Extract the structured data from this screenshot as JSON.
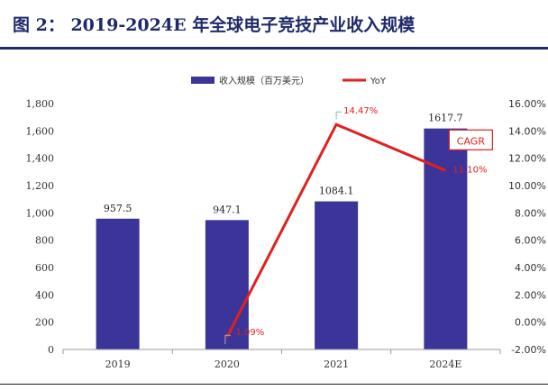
{
  "figure": {
    "title": "图 2：  2019-2024E 年全球电子竞技产业收入规模"
  },
  "chart_data": {
    "type": "bar",
    "categories": [
      "2019",
      "2020",
      "2021",
      "2024E"
    ],
    "series": [
      {
        "name": "收入规模（百万美元）",
        "kind": "bar",
        "axis": "left",
        "values": [
          957.5,
          947.1,
          1084.1,
          1617.7
        ],
        "labels": [
          "957.5",
          "947.1",
          "1084.1",
          "1617.7"
        ]
      },
      {
        "name": "YoY",
        "kind": "line",
        "axis": "right",
        "values": [
          null,
          -1.09,
          14.47,
          11.1
        ],
        "labels": [
          "",
          "-1.09%",
          "14.47%",
          "11.10%"
        ]
      }
    ],
    "left_axis": {
      "ylim": [
        0,
        1800
      ],
      "ticks": [
        "0",
        "200",
        "400",
        "600",
        "800",
        "1,000",
        "1,200",
        "1,400",
        "1,600",
        "1,800"
      ]
    },
    "right_axis": {
      "ylim": [
        -2,
        16
      ],
      "ticks": [
        "-2.00%",
        "0.00%",
        "2.00%",
        "4.00%",
        "6.00%",
        "8.00%",
        "10.00%",
        "12.00%",
        "14.00%",
        "16.00%"
      ]
    },
    "annotation": "CAGR",
    "legend_position": "top-center",
    "grid": false,
    "colors": {
      "bar": "#3b3499",
      "line": "#e02020",
      "title": "#1f2a6b"
    }
  }
}
